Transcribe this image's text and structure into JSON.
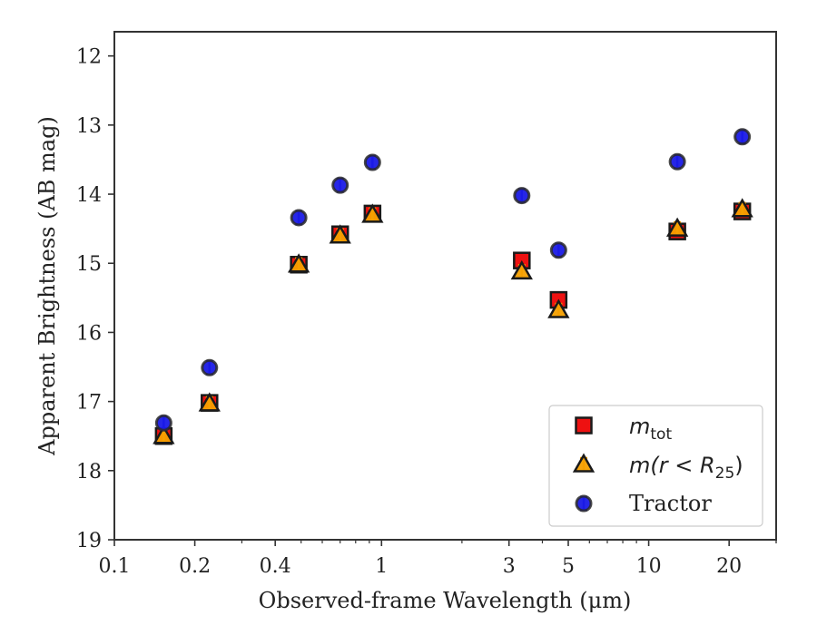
{
  "chart_data": {
    "type": "scatter",
    "title": "",
    "xlabel": "Observed-frame Wavelength (μm)",
    "ylabel": "Apparent Brightness (AB mag)",
    "xscale": "log",
    "xlim": [
      0.1,
      30
    ],
    "ylim": [
      19,
      11.65
    ],
    "y_inverted": true,
    "x_ticks": [
      0.1,
      0.2,
      0.4,
      1,
      3,
      5,
      10,
      20
    ],
    "x_tick_labels": [
      "0.1",
      "0.2",
      "0.4",
      "1",
      "3",
      "5",
      "10",
      "20"
    ],
    "y_ticks": [
      12,
      13,
      14,
      15,
      16,
      17,
      18,
      19
    ],
    "y_tick_labels": [
      "12",
      "13",
      "14",
      "15",
      "16",
      "17",
      "18",
      "19"
    ],
    "grid": false,
    "legend_position": "lower-right",
    "series": [
      {
        "name": "m_tot",
        "marker": "square",
        "color": "#ee1111",
        "points": [
          {
            "x": 0.153,
            "y": 17.5
          },
          {
            "x": 0.227,
            "y": 17.02
          },
          {
            "x": 0.49,
            "y": 15.02
          },
          {
            "x": 0.7,
            "y": 14.58
          },
          {
            "x": 0.925,
            "y": 14.28
          },
          {
            "x": 3.35,
            "y": 14.96
          },
          {
            "x": 4.6,
            "y": 15.53
          },
          {
            "x": 12.8,
            "y": 14.54
          },
          {
            "x": 22.4,
            "y": 14.25
          }
        ]
      },
      {
        "name": "m(r<R25)",
        "marker": "triangle",
        "color": "#f5a000",
        "points": [
          {
            "x": 0.153,
            "y": 17.5
          },
          {
            "x": 0.227,
            "y": 17.03
          },
          {
            "x": 0.49,
            "y": 15.02
          },
          {
            "x": 0.7,
            "y": 14.6
          },
          {
            "x": 0.925,
            "y": 14.3
          },
          {
            "x": 3.35,
            "y": 15.12
          },
          {
            "x": 4.6,
            "y": 15.68
          },
          {
            "x": 12.8,
            "y": 14.5
          },
          {
            "x": 22.4,
            "y": 14.22
          }
        ]
      },
      {
        "name": "Tractor",
        "marker": "circle",
        "color": "#1a1ae6",
        "points": [
          {
            "x": 0.153,
            "y": 17.31
          },
          {
            "x": 0.227,
            "y": 16.51
          },
          {
            "x": 0.49,
            "y": 14.34
          },
          {
            "x": 0.7,
            "y": 13.87
          },
          {
            "x": 0.925,
            "y": 13.54
          },
          {
            "x": 3.35,
            "y": 14.02
          },
          {
            "x": 4.6,
            "y": 14.81
          },
          {
            "x": 12.8,
            "y": 13.53
          },
          {
            "x": 22.4,
            "y": 13.17
          }
        ]
      }
    ]
  },
  "legend": {
    "mtot_main": "m",
    "mtot_sub": "tot",
    "mr_main": "m(r < R",
    "mr_sub": "25",
    "mr_close": ")",
    "tractor": "Tractor"
  }
}
